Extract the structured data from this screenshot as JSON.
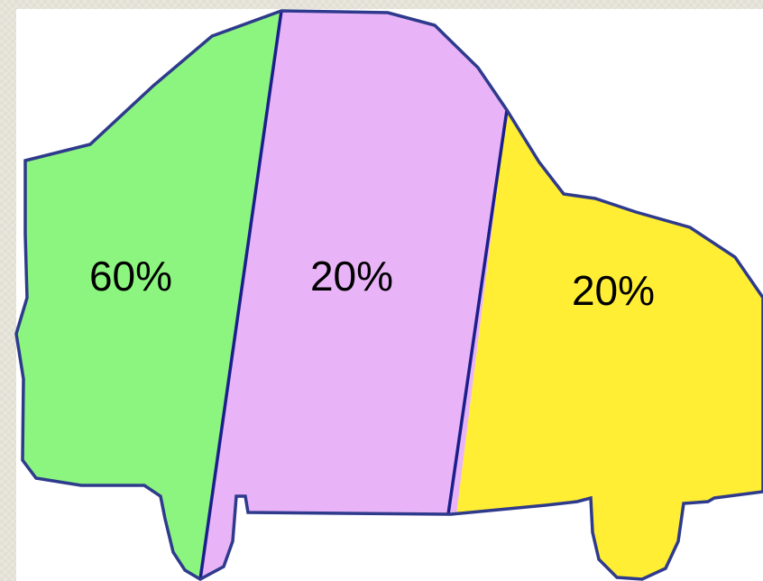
{
  "segments": [
    {
      "label": "60%"
    },
    {
      "label": "20%"
    },
    {
      "label": "20%"
    }
  ]
}
